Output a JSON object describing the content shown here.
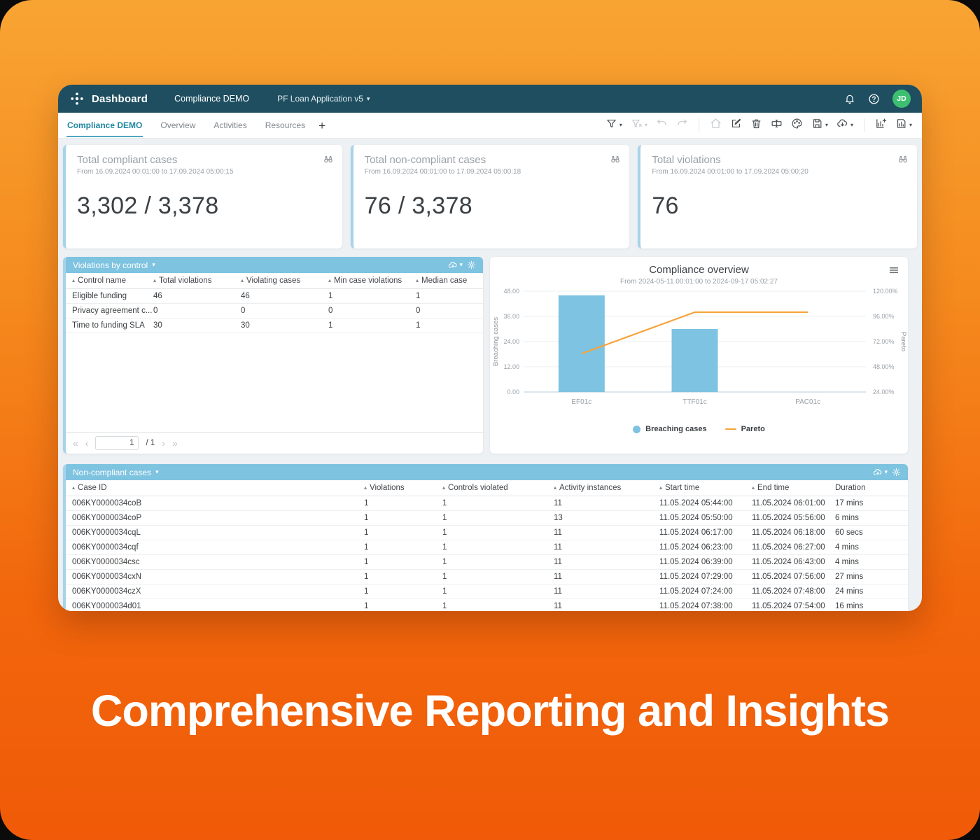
{
  "headline": "Comprehensive Reporting and Insights",
  "navbar": {
    "brand": "Dashboard",
    "workspace": "Compliance DEMO",
    "app_selector": "PF Loan Application v5",
    "avatar_initials": "JD"
  },
  "tabs": {
    "items": [
      {
        "label": "Compliance DEMO",
        "active": true
      },
      {
        "label": "Overview",
        "active": false
      },
      {
        "label": "Activities",
        "active": false
      },
      {
        "label": "Resources",
        "active": false
      }
    ],
    "add_label": "+"
  },
  "toolbar": {
    "icons": [
      {
        "name": "filter",
        "dropdown": true,
        "disabled": false
      },
      {
        "name": "filter-off",
        "dropdown": true,
        "disabled": true
      },
      {
        "name": "undo",
        "dropdown": false,
        "disabled": true
      },
      {
        "name": "redo",
        "dropdown": false,
        "disabled": true
      },
      {
        "name": "divider"
      },
      {
        "name": "home",
        "dropdown": false,
        "disabled": true
      },
      {
        "name": "edit",
        "dropdown": false,
        "disabled": false
      },
      {
        "name": "trash",
        "dropdown": false,
        "disabled": false
      },
      {
        "name": "rename",
        "dropdown": false,
        "disabled": false
      },
      {
        "name": "palette",
        "dropdown": false,
        "disabled": false
      },
      {
        "name": "save",
        "dropdown": true,
        "disabled": false
      },
      {
        "name": "export-cloud",
        "dropdown": true,
        "disabled": false
      },
      {
        "name": "divider"
      },
      {
        "name": "add-chart",
        "dropdown": false,
        "disabled": false
      },
      {
        "name": "save-chart",
        "dropdown": true,
        "disabled": false
      }
    ]
  },
  "kpi_cards": [
    {
      "title": "Total compliant cases",
      "range": "From 16.09.2024 00:01:00 to 17.09.2024 05:00:15",
      "value": "3,302 / 3,378"
    },
    {
      "title": "Total non-compliant cases",
      "range": "From 16.09.2024 00:01:00 to 17.09.2024 05:00:18",
      "value": "76 / 3,378"
    },
    {
      "title": "Total violations",
      "range": "From 16.09.2024 00:01:00 to 17.09.2024 05:00:20",
      "value": "76"
    }
  ],
  "violations_panel": {
    "title": "Violations by control",
    "columns": [
      "Control name",
      "Total violations",
      "Violating cases",
      "Min case violations",
      "Median case"
    ],
    "rows": [
      [
        "Eligible funding",
        "46",
        "46",
        "1",
        "1"
      ],
      [
        "Privacy agreement c...",
        "0",
        "0",
        "0",
        "0"
      ],
      [
        "Time to funding SLA",
        "30",
        "30",
        "1",
        "1"
      ]
    ],
    "pagination": {
      "page": "1",
      "of": "/ 1"
    }
  },
  "chart_data": {
    "type": "combo",
    "title": "Compliance overview",
    "subtitle": "From 2024-05-11 00:01:00 to 2024-09-17 05:02:27",
    "categories": [
      "EF01c",
      "TTF01c",
      "PAC01c"
    ],
    "series": [
      {
        "name": "Breaching cases",
        "type": "bar",
        "axis": "left",
        "color": "#7EC3E1",
        "values": [
          46,
          30,
          0
        ]
      },
      {
        "name": "Pareto",
        "type": "line",
        "axis": "right",
        "color": "#F7A33B",
        "values_percent": [
          60.5,
          100,
          100
        ]
      }
    ],
    "left_axis": {
      "label": "Breaching cases",
      "min": 0,
      "max": 48,
      "ticks": [
        "48.00",
        "36.00",
        "24.00",
        "12.00",
        "0.00"
      ]
    },
    "right_axis": {
      "label": "Pareto",
      "min": 24,
      "max": 120,
      "ticks": [
        "120.00%",
        "96.00%",
        "72.00%",
        "48.00%",
        "24.00%"
      ]
    },
    "legend_position": "bottom",
    "grid": true
  },
  "cases_panel": {
    "title": "Non-compliant cases",
    "columns": [
      "Case ID",
      "Violations",
      "Controls violated",
      "Activity instances",
      "Start time",
      "End time",
      "Duration"
    ],
    "sortable": [
      true,
      true,
      true,
      true,
      true,
      true,
      false
    ],
    "rows": [
      [
        "006KY0000034coB",
        "1",
        "1",
        "11",
        "11.05.2024 05:44:00",
        "11.05.2024 06:01:00",
        "17 mins"
      ],
      [
        "006KY0000034coP",
        "1",
        "1",
        "13",
        "11.05.2024 05:50:00",
        "11.05.2024 05:56:00",
        "6 mins"
      ],
      [
        "006KY0000034cqL",
        "1",
        "1",
        "11",
        "11.05.2024 06:17:00",
        "11.05.2024 06:18:00",
        "60 secs"
      ],
      [
        "006KY0000034cqf",
        "1",
        "1",
        "11",
        "11.05.2024 06:23:00",
        "11.05.2024 06:27:00",
        "4 mins"
      ],
      [
        "006KY0000034csc",
        "1",
        "1",
        "11",
        "11.05.2024 06:39:00",
        "11.05.2024 06:43:00",
        "4 mins"
      ],
      [
        "006KY0000034cxN",
        "1",
        "1",
        "11",
        "11.05.2024 07:29:00",
        "11.05.2024 07:56:00",
        "27 mins"
      ],
      [
        "006KY0000034czX",
        "1",
        "1",
        "11",
        "11.05.2024 07:24:00",
        "11.05.2024 07:48:00",
        "24 mins"
      ],
      [
        "006KY0000034d01",
        "1",
        "1",
        "11",
        "11.05.2024 07:38:00",
        "11.05.2024 07:54:00",
        "16 mins"
      ]
    ]
  }
}
